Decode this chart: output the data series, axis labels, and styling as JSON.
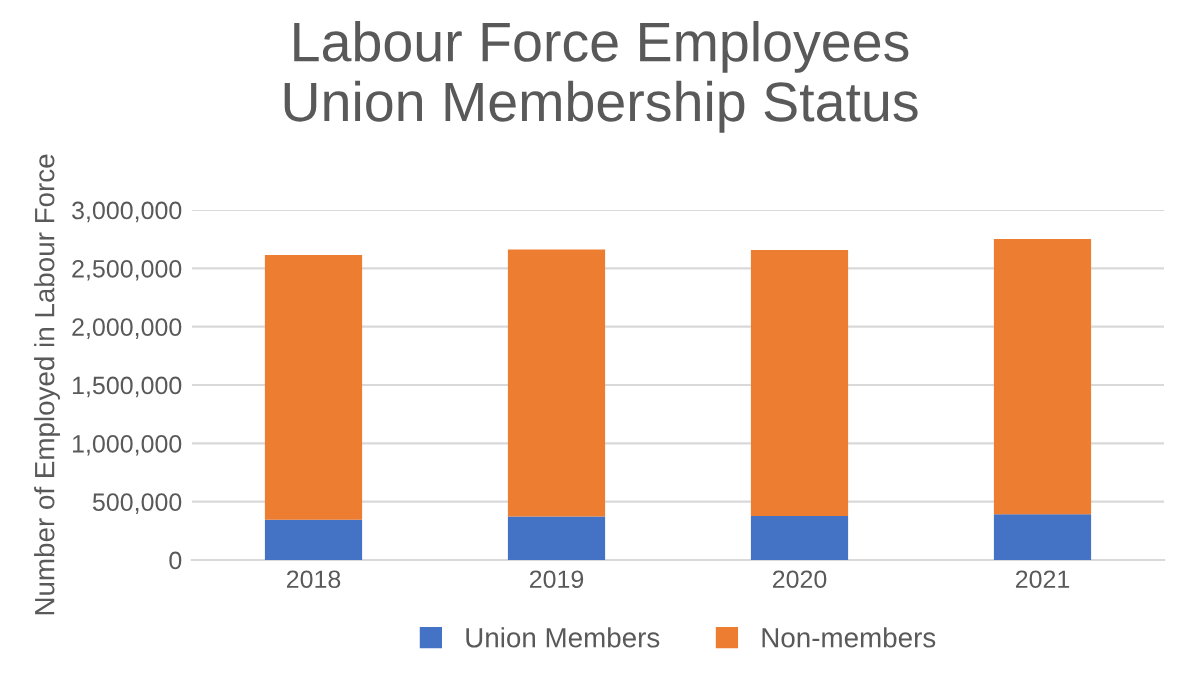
{
  "chart_data": {
    "type": "bar",
    "stacked": true,
    "title": "Labour Force Employees\nUnion Membership Status",
    "ylabel": "Number of Employed in Labour Force",
    "categories": [
      "2018",
      "2019",
      "2020",
      "2021"
    ],
    "series": [
      {
        "name": "Union Members",
        "color": "#4472c4",
        "values": [
          345000,
          372000,
          378000,
          392000
        ]
      },
      {
        "name": "Non-members",
        "color": "#ed7d31",
        "values": [
          2270000,
          2290000,
          2280000,
          2360000
        ]
      }
    ],
    "ylim": [
      0,
      3000000
    ],
    "yticks": [
      {
        "value": 0,
        "label": "0"
      },
      {
        "value": 500000,
        "label": "500,000"
      },
      {
        "value": 1000000,
        "label": "1,000,000"
      },
      {
        "value": 1500000,
        "label": "1,500,000"
      },
      {
        "value": 2000000,
        "label": "2,000,000"
      },
      {
        "value": 2500000,
        "label": "2,500,000"
      },
      {
        "value": 3000000,
        "label": "3,000,000"
      }
    ],
    "grid": "y",
    "legend": "bottom"
  }
}
